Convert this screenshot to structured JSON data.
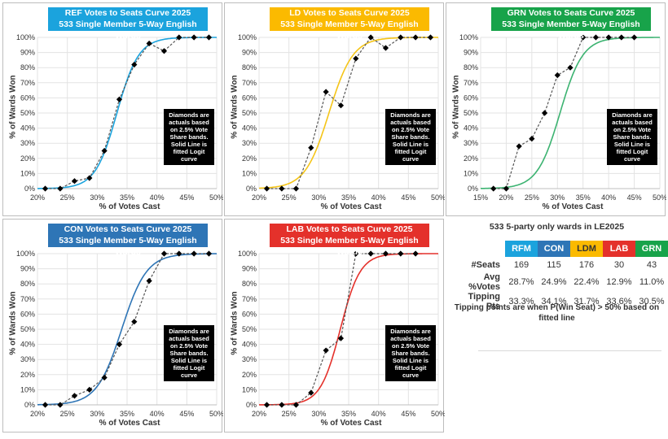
{
  "chart_data": [
    {
      "type": "scatter",
      "party": "REF",
      "title": "REF Votes to Seats Curve 2025",
      "subtitle": "533 Single Member 5-Way English Wards",
      "title_color": "#1ba3dd",
      "line_color": "#1ba3dd",
      "xlabel": "% of Votes Cast",
      "ylabel": "% of Wards Won",
      "xlim": [
        20,
        50
      ],
      "ylim": [
        0,
        100
      ],
      "x_ticks": [
        "20%",
        "25%",
        "30%",
        "35%",
        "40%",
        "45%",
        "50%"
      ],
      "y_ticks": [
        "0%",
        "10%",
        "20%",
        "30%",
        "40%",
        "50%",
        "60%",
        "70%",
        "80%",
        "90%",
        "100%"
      ],
      "points": [
        [
          21.3,
          0
        ],
        [
          23.8,
          0
        ],
        [
          26.2,
          5
        ],
        [
          28.7,
          7
        ],
        [
          31.2,
          25
        ],
        [
          33.7,
          59
        ],
        [
          36.2,
          82
        ],
        [
          38.7,
          96
        ],
        [
          41.2,
          91
        ],
        [
          43.7,
          100
        ],
        [
          46.2,
          100
        ],
        [
          48.7,
          100
        ]
      ],
      "fit": {
        "midpoint": 33.3,
        "slope": 0.55
      },
      "note": "Diamonds are actuals based on 2.5% Vote Share bands. Solid Line is fitted Logit curve"
    },
    {
      "type": "scatter",
      "party": "LD",
      "title": "LD Votes to Seats Curve 2025",
      "subtitle": "533 Single Member 5-Way English Wards",
      "title_color": "#fbba00",
      "line_color": "#f5c518",
      "xlabel": "% of Votes Cast",
      "ylabel": "% of Wards Won",
      "xlim": [
        20,
        50
      ],
      "ylim": [
        0,
        100
      ],
      "x_ticks": [
        "20%",
        "25%",
        "30%",
        "35%",
        "40%",
        "45%",
        "50%"
      ],
      "y_ticks": [
        "0%",
        "10%",
        "20%",
        "30%",
        "40%",
        "50%",
        "60%",
        "70%",
        "80%",
        "90%",
        "100%"
      ],
      "points": [
        [
          21.3,
          0
        ],
        [
          23.8,
          0
        ],
        [
          26.2,
          0
        ],
        [
          28.7,
          27
        ],
        [
          31.2,
          64
        ],
        [
          33.7,
          55
        ],
        [
          36.2,
          86
        ],
        [
          38.7,
          100
        ],
        [
          41.2,
          93
        ],
        [
          43.7,
          100
        ],
        [
          46.2,
          100
        ],
        [
          48.7,
          100
        ]
      ],
      "fit": {
        "midpoint": 31.7,
        "slope": 0.5
      },
      "note": "Diamonds are actuals based on 2.5% Vote Share bands. Solid Line is fitted Logit curve"
    },
    {
      "type": "scatter",
      "party": "GRN",
      "title": "GRN Votes to Seats Curve 2025",
      "subtitle": "533 Single Member 5-Way English Wards",
      "title_color": "#18a34a",
      "line_color": "#3cb371",
      "xlabel": "% of Votes Cast",
      "ylabel": "% of Wards Won",
      "xlim": [
        15,
        50
      ],
      "ylim": [
        0,
        100
      ],
      "x_ticks": [
        "15%",
        "20%",
        "25%",
        "30%",
        "35%",
        "40%",
        "45%",
        "50%"
      ],
      "y_ticks": [
        "0%",
        "10%",
        "20%",
        "30%",
        "40%",
        "50%",
        "60%",
        "70%",
        "80%",
        "90%",
        "100%"
      ],
      "points": [
        [
          17.5,
          0
        ],
        [
          20,
          0
        ],
        [
          22.5,
          28
        ],
        [
          25,
          33
        ],
        [
          27.5,
          50
        ],
        [
          30,
          75
        ],
        [
          32.5,
          80
        ],
        [
          35,
          100
        ],
        [
          37.5,
          100
        ],
        [
          40,
          100
        ],
        [
          42.5,
          100
        ],
        [
          45,
          100
        ]
      ],
      "fit": {
        "midpoint": 30.5,
        "slope": 0.45
      },
      "note": "Diamonds are actuals based on 2.5% Vote Share bands. Solid Line is fitted Logit curve"
    },
    {
      "type": "scatter",
      "party": "CON",
      "title": "CON Votes to Seats Curve 2025",
      "subtitle": "533 Single Member 5-Way English Wards",
      "title_color": "#2e75b6",
      "line_color": "#2e75b6",
      "xlabel": "% of Votes Cast",
      "ylabel": "% of Wards Won",
      "xlim": [
        20,
        50
      ],
      "ylim": [
        0,
        100
      ],
      "x_ticks": [
        "20%",
        "25%",
        "30%",
        "35%",
        "40%",
        "45%",
        "50%"
      ],
      "y_ticks": [
        "0%",
        "10%",
        "20%",
        "30%",
        "40%",
        "50%",
        "60%",
        "70%",
        "80%",
        "90%",
        "100%"
      ],
      "points": [
        [
          21.3,
          0
        ],
        [
          23.8,
          0
        ],
        [
          26.2,
          6
        ],
        [
          28.7,
          10
        ],
        [
          31.2,
          18
        ],
        [
          33.7,
          40
        ],
        [
          36.2,
          55
        ],
        [
          38.7,
          82
        ],
        [
          41.2,
          100
        ],
        [
          43.7,
          100
        ],
        [
          46.2,
          100
        ],
        [
          48.7,
          100
        ]
      ],
      "fit": {
        "midpoint": 34.1,
        "slope": 0.48
      },
      "note": "Diamonds are actuals based on 2.5% Vote Share bands. Solid Line is fitted Logit curve"
    },
    {
      "type": "scatter",
      "party": "LAB",
      "title": "LAB Votes to Seats Curve 2025",
      "subtitle": "533 Single Member 5-Way English Wards",
      "title_color": "#e4312b",
      "line_color": "#e4312b",
      "xlabel": "% of Votes Cast",
      "ylabel": "% of Wards Won",
      "xlim": [
        20,
        50
      ],
      "ylim": [
        0,
        100
      ],
      "x_ticks": [
        "20%",
        "25%",
        "30%",
        "35%",
        "40%",
        "45%",
        "50%"
      ],
      "y_ticks": [
        "0%",
        "10%",
        "20%",
        "30%",
        "40%",
        "50%",
        "60%",
        "70%",
        "80%",
        "90%",
        "100%"
      ],
      "points": [
        [
          21.3,
          0
        ],
        [
          23.8,
          0
        ],
        [
          26.2,
          0
        ],
        [
          28.7,
          8
        ],
        [
          31.2,
          36
        ],
        [
          33.7,
          44
        ],
        [
          36.2,
          100
        ],
        [
          38.7,
          100
        ],
        [
          41.2,
          100
        ],
        [
          43.7,
          100
        ],
        [
          46.2,
          100
        ]
      ],
      "fit": {
        "midpoint": 33.6,
        "slope": 0.6
      },
      "note": "Diamonds are actuals based on 2.5% Vote Share bands. Solid Line is fitted Logit curve"
    }
  ],
  "summary": {
    "title": "533 5-party only wards in LE2025",
    "parties": [
      {
        "name": "RFM",
        "color": "#1ba3dd",
        "text_color": "#ffffff",
        "seats": "169",
        "avg_votes": "28.7%",
        "tipping": "33.3%"
      },
      {
        "name": "CON",
        "color": "#2e75b6",
        "text_color": "#ffffff",
        "seats": "115",
        "avg_votes": "24.9%",
        "tipping": "34.1%"
      },
      {
        "name": "LDM",
        "color": "#fbba00",
        "text_color": "#333333",
        "seats": "176",
        "avg_votes": "22.4%",
        "tipping": "31.7%"
      },
      {
        "name": "LAB",
        "color": "#e4312b",
        "text_color": "#ffffff",
        "seats": "30",
        "avg_votes": "12.9%",
        "tipping": "33.6%"
      },
      {
        "name": "GRN",
        "color": "#18a34a",
        "text_color": "#ffffff",
        "seats": "43",
        "avg_votes": "11.0%",
        "tipping": "30.5%"
      }
    ],
    "row_labels": {
      "seats": "#Seats",
      "avg_votes": "Avg %Votes",
      "tipping": "Tipping Pts"
    },
    "note": "Tipping points are when P(Win Seat) > 50% based on fitted line"
  }
}
